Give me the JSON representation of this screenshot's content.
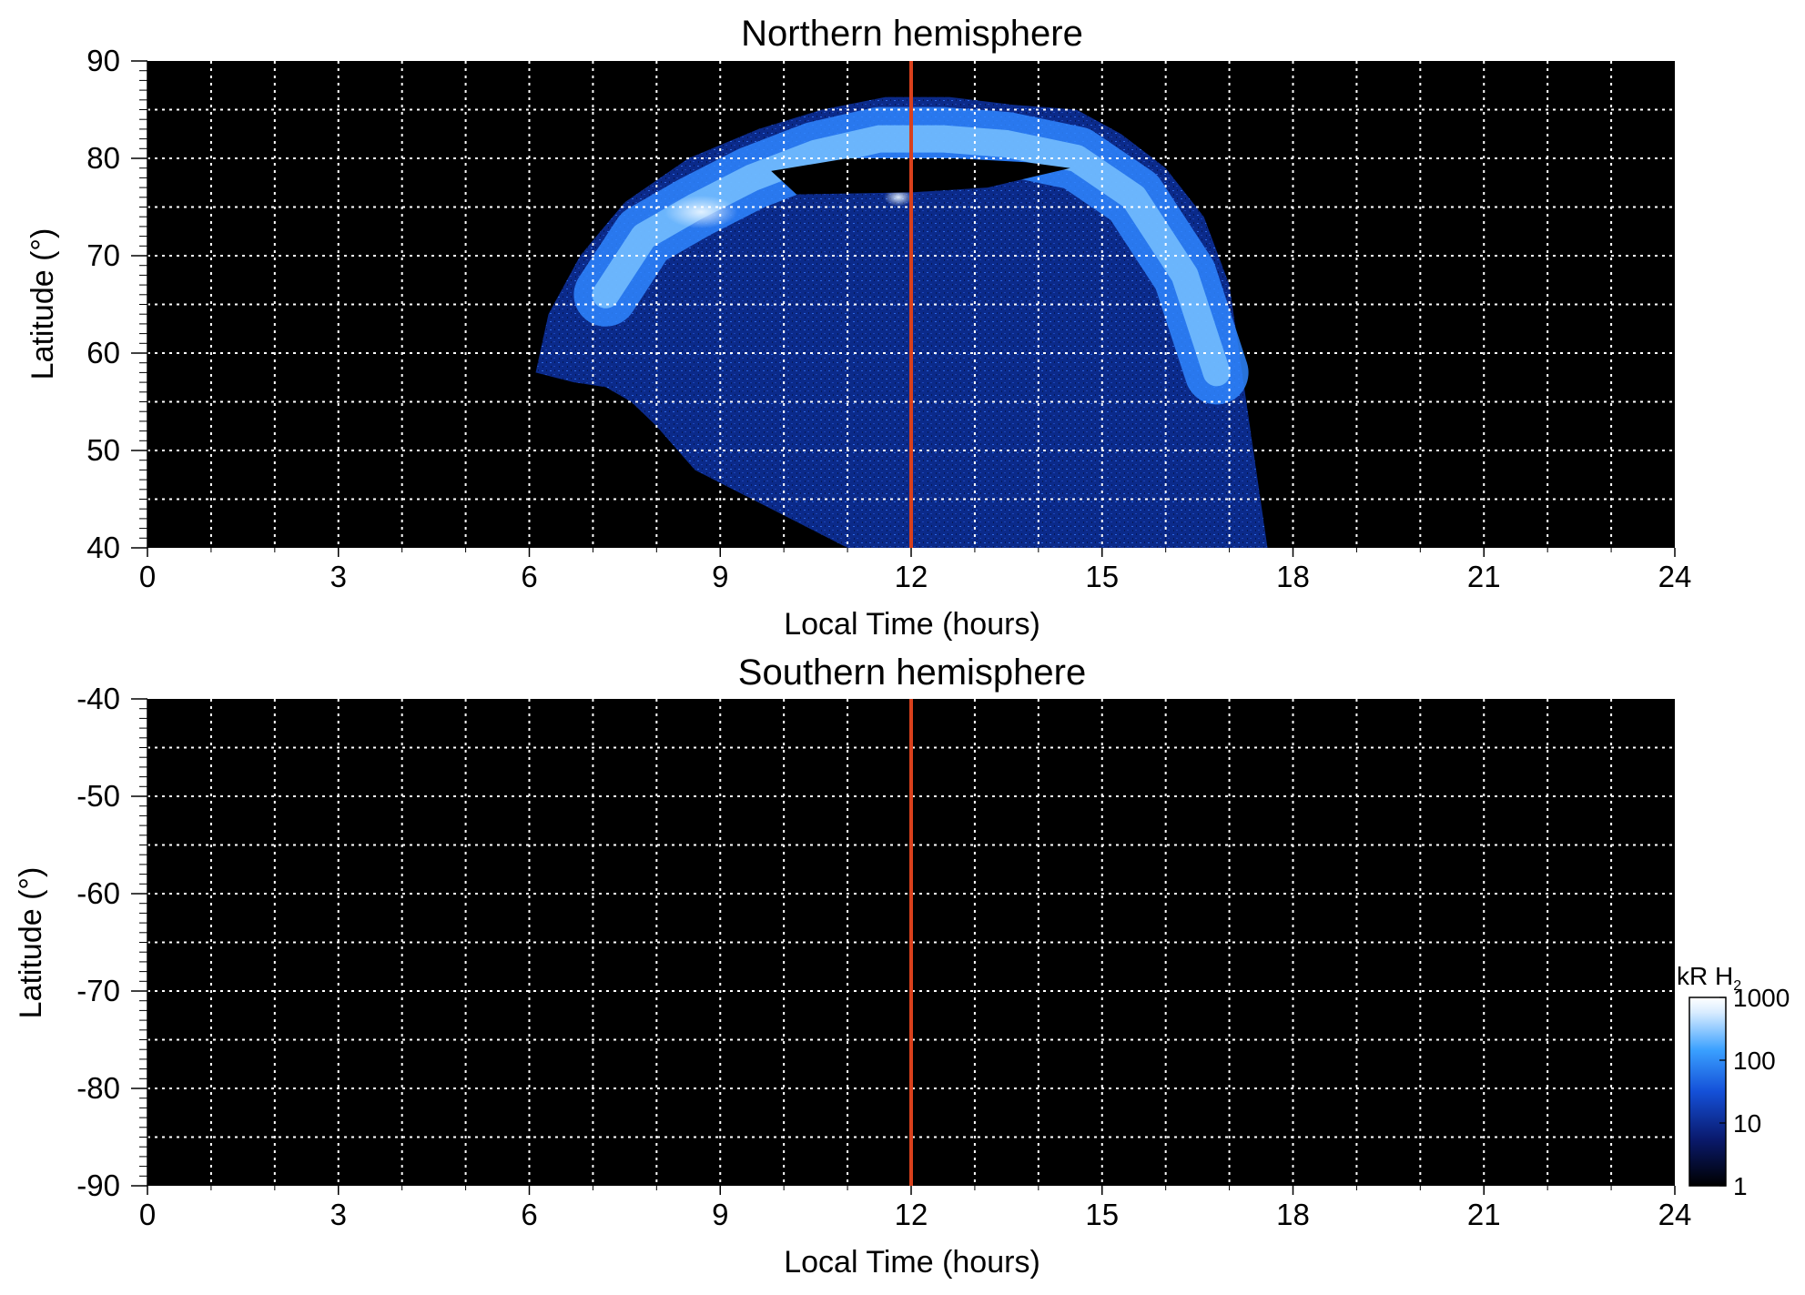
{
  "chart_data": [
    {
      "type": "heatmap",
      "title": "Northern hemisphere",
      "xlabel": "Local Time (hours)",
      "ylabel": "Latitude (°)",
      "xlim": [
        0,
        24
      ],
      "ylim": [
        40,
        90
      ],
      "x_ticks": [
        "0",
        "3",
        "6",
        "9",
        "12",
        "15",
        "18",
        "21",
        "24"
      ],
      "y_ticks": [
        "40",
        "50",
        "60",
        "70",
        "80",
        "90"
      ],
      "grid": true,
      "marker_line_x": 12,
      "marker_line_color": "#d9401c",
      "background_color": "#000000",
      "emission": {
        "outer_boundary": [
          [
            6.1,
            58
          ],
          [
            6.3,
            64
          ],
          [
            6.8,
            70
          ],
          [
            7.5,
            75.5
          ],
          [
            8.5,
            80
          ],
          [
            9.6,
            83
          ],
          [
            10.6,
            85
          ],
          [
            11.6,
            86.3
          ],
          [
            12.6,
            86.3
          ],
          [
            13.6,
            85.5
          ],
          [
            14.6,
            85
          ],
          [
            15.3,
            82.5
          ],
          [
            16.0,
            79
          ],
          [
            16.6,
            74
          ],
          [
            17.0,
            67
          ],
          [
            17.2,
            58
          ],
          [
            17.4,
            49
          ],
          [
            17.6,
            40
          ]
        ],
        "inner_boundary": [
          [
            8.0,
            52.5
          ],
          [
            7.6,
            55
          ],
          [
            7.2,
            56.5
          ],
          [
            6.7,
            57
          ],
          [
            6.1,
            58
          ]
        ],
        "bright_arc_lat_mlt": [
          [
            7.2,
            66
          ],
          [
            7.8,
            72
          ],
          [
            8.6,
            75
          ],
          [
            9.5,
            78
          ],
          [
            10.5,
            80.5
          ],
          [
            11.5,
            82
          ],
          [
            12.5,
            82
          ],
          [
            13.5,
            81.5
          ],
          [
            14.6,
            80
          ],
          [
            15.5,
            76
          ],
          [
            16.3,
            68
          ],
          [
            16.8,
            58
          ]
        ],
        "dark_gap": [
          [
            9.8,
            78.7
          ],
          [
            11.0,
            80
          ],
          [
            12.7,
            80
          ],
          [
            13.8,
            79.6
          ],
          [
            14.5,
            79
          ],
          [
            13.2,
            77
          ],
          [
            12.0,
            76.5
          ],
          [
            10.2,
            76.3
          ]
        ]
      }
    },
    {
      "type": "heatmap",
      "title": "Southern hemisphere",
      "xlabel": "Local Time (hours)",
      "ylabel": "Latitude (°)",
      "xlim": [
        0,
        24
      ],
      "ylim": [
        -90,
        -40
      ],
      "x_ticks": [
        "0",
        "3",
        "6",
        "9",
        "12",
        "15",
        "18",
        "21",
        "24"
      ],
      "y_ticks": [
        "-40",
        "-50",
        "-60",
        "-70",
        "-80",
        "-90"
      ],
      "grid": true,
      "marker_line_x": 12,
      "marker_line_color": "#d9401c",
      "background_color": "#000000"
    }
  ],
  "colorbar": {
    "label_main": "kR H",
    "label_sub": "2",
    "scale": "log",
    "range": [
      1,
      1000
    ],
    "ticks": [
      "1000",
      "100",
      "10",
      "1"
    ],
    "colors": [
      "#000000",
      "#0a1a6e",
      "#1450d8",
      "#3aa0ff",
      "#d8ecff",
      "#ffffff"
    ]
  }
}
